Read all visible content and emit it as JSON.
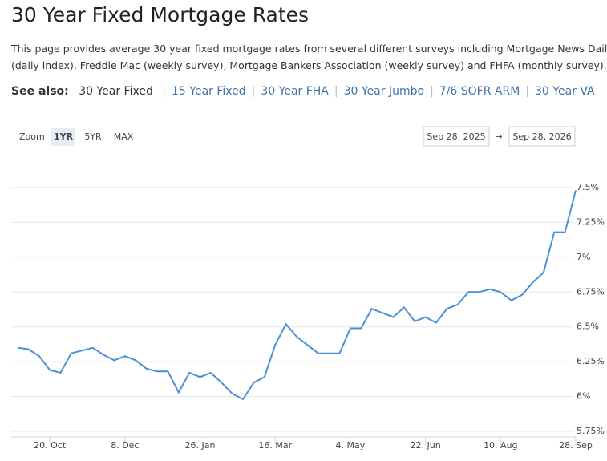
{
  "title": "30 Year Fixed Mortgage Rates",
  "description": "This page provides average 30 year fixed mortgage rates from several different surveys including Mortgage News Daily (daily index), Freddie Mac (weekly survey), Mortgage Bankers Association (weekly survey) and FHFA (monthly survey).",
  "see_also": {
    "label": "See also:",
    "current": "30 Year Fixed",
    "links": [
      "15 Year Fixed",
      "30 Year FHA",
      "30 Year Jumbo",
      "7/6 SOFR ARM",
      "30 Year VA"
    ]
  },
  "zoom": {
    "label": "Zoom",
    "options": [
      "1YR",
      "5YR",
      "MAX"
    ]
  },
  "date_range": {
    "from": "Sep 28, 2025",
    "separator": "→",
    "to": "Sep 28, 2026"
  },
  "chart_data": {
    "type": "line",
    "categories": [
      null,
      null,
      null,
      "20. Oct",
      null,
      null,
      null,
      null,
      null,
      null,
      "8. Dec",
      null,
      null,
      null,
      null,
      null,
      null,
      "26. Jan",
      null,
      null,
      null,
      null,
      null,
      null,
      "16. Mar",
      null,
      null,
      null,
      null,
      null,
      null,
      "4. May",
      null,
      null,
      null,
      null,
      null,
      null,
      "22. Jun",
      null,
      null,
      null,
      null,
      null,
      null,
      "10. Aug",
      null,
      null,
      null,
      null,
      null,
      null,
      "28. Sep"
    ],
    "values": [
      6.35,
      6.34,
      6.29,
      6.19,
      6.17,
      6.31,
      6.33,
      6.35,
      6.3,
      6.26,
      6.29,
      6.26,
      6.2,
      6.18,
      6.18,
      6.03,
      6.17,
      6.14,
      6.17,
      6.1,
      6.02,
      5.98,
      6.1,
      6.14,
      6.37,
      6.52,
      6.43,
      6.37,
      6.31,
      6.31,
      6.31,
      6.49,
      6.49,
      6.63,
      6.6,
      6.57,
      6.64,
      6.54,
      6.57,
      6.53,
      6.63,
      6.66,
      6.75,
      6.75,
      6.77,
      6.75,
      6.69,
      6.73,
      6.82,
      6.89,
      7.18,
      7.18,
      7.48
    ],
    "color": "#4a90d9",
    "ylim": [
      5.75,
      7.5
    ],
    "yticks": [
      {
        "value": 5.75,
        "label": "5.75%"
      },
      {
        "value": 6,
        "label": "6%"
      },
      {
        "value": 6.25,
        "label": "6.25%"
      },
      {
        "value": 6.5,
        "label": "6.5%"
      },
      {
        "value": 6.75,
        "label": "6.75%"
      },
      {
        "value": 7,
        "label": "7%"
      },
      {
        "value": 7.25,
        "label": "7.25%"
      },
      {
        "value": 7.5,
        "label": "7.5%"
      }
    ],
    "grid": true
  }
}
